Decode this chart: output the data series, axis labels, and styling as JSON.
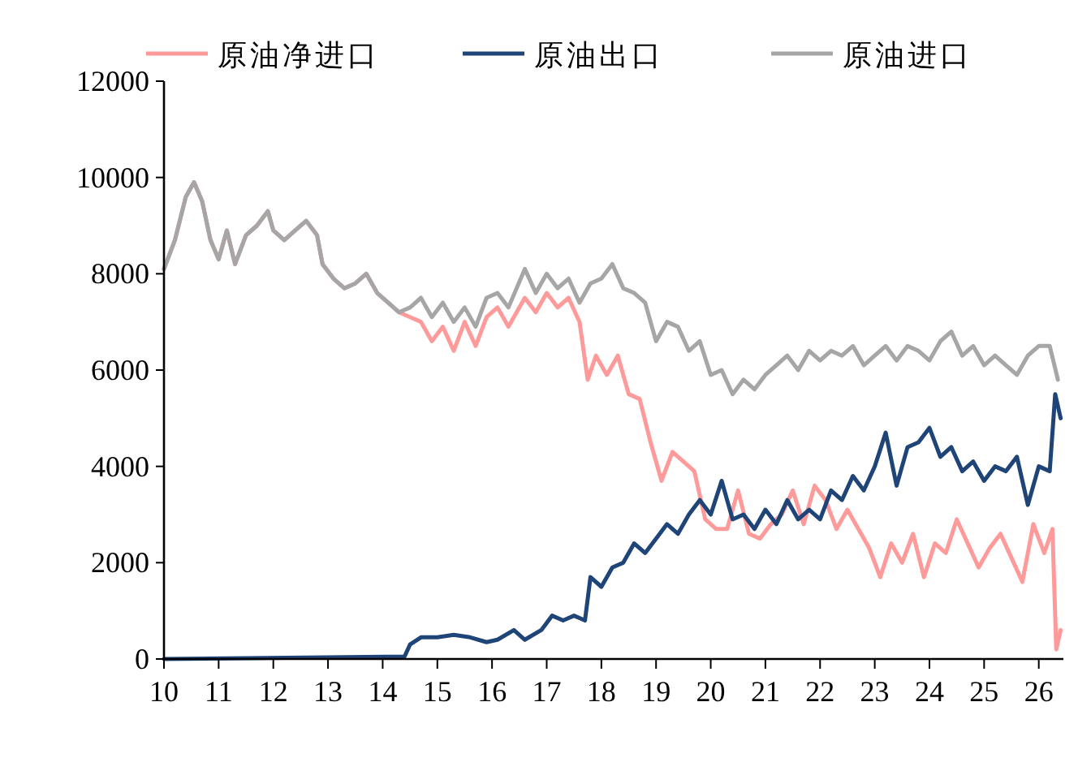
{
  "chart_data": {
    "type": "line",
    "xlim": [
      10,
      26.45
    ],
    "ylim": [
      0,
      12000
    ],
    "xticks": [
      10,
      11,
      12,
      13,
      14,
      15,
      16,
      17,
      18,
      19,
      20,
      21,
      22,
      23,
      24,
      25,
      26
    ],
    "yticks": [
      0,
      2000,
      4000,
      6000,
      8000,
      10000,
      12000
    ],
    "grid": false,
    "legend": "top",
    "series": [
      {
        "name": "原油净进口",
        "color": "#ff9a9a",
        "x": [
          10.0,
          10.2,
          10.4,
          10.55,
          10.7,
          10.85,
          11.0,
          11.15,
          11.3,
          11.5,
          11.7,
          11.9,
          12.0,
          12.2,
          12.4,
          12.6,
          12.8,
          12.9,
          13.1,
          13.3,
          13.5,
          13.7,
          13.9,
          14.1,
          14.3,
          14.5,
          14.7,
          14.9,
          15.1,
          15.3,
          15.5,
          15.7,
          15.9,
          16.1,
          16.3,
          16.6,
          16.8,
          17.0,
          17.2,
          17.4,
          17.6,
          17.75,
          17.9,
          18.1,
          18.3,
          18.5,
          18.7,
          18.9,
          19.1,
          19.3,
          19.5,
          19.7,
          19.9,
          20.1,
          20.3,
          20.5,
          20.7,
          20.9,
          21.1,
          21.3,
          21.5,
          21.7,
          21.9,
          22.1,
          22.3,
          22.5,
          22.7,
          22.9,
          23.1,
          23.3,
          23.5,
          23.7,
          23.9,
          24.1,
          24.3,
          24.5,
          24.7,
          24.9,
          25.1,
          25.3,
          25.5,
          25.7,
          25.9,
          26.1,
          26.25,
          26.32,
          26.4
        ],
        "values": [
          8100,
          8700,
          9600,
          9900,
          9500,
          8700,
          8300,
          8900,
          8200,
          8800,
          9000,
          9300,
          8900,
          8700,
          8900,
          9100,
          8800,
          8200,
          7900,
          7700,
          7800,
          8000,
          7600,
          7400,
          7200,
          7100,
          7000,
          6600,
          6900,
          6400,
          7000,
          6500,
          7100,
          7300,
          6900,
          7500,
          7200,
          7600,
          7300,
          7500,
          7000,
          5800,
          6300,
          5900,
          6300,
          5500,
          5400,
          4500,
          3700,
          4300,
          4100,
          3900,
          2900,
          2700,
          2700,
          3500,
          2600,
          2500,
          2800,
          3000,
          3500,
          2800,
          3600,
          3300,
          2700,
          3100,
          2700,
          2300,
          1700,
          2400,
          2000,
          2600,
          1700,
          2400,
          2200,
          2900,
          2400,
          1900,
          2300,
          2600,
          2100,
          1600,
          2800,
          2200,
          2700,
          200,
          600
        ]
      },
      {
        "name": "原油出口",
        "color": "#1f4578",
        "x": [
          10.0,
          14.4,
          14.5,
          14.7,
          15.0,
          15.3,
          15.6,
          15.9,
          16.1,
          16.4,
          16.6,
          16.9,
          17.1,
          17.3,
          17.5,
          17.7,
          17.8,
          18.0,
          18.2,
          18.4,
          18.6,
          18.8,
          19.0,
          19.2,
          19.4,
          19.6,
          19.8,
          20.0,
          20.2,
          20.4,
          20.6,
          20.8,
          21.0,
          21.2,
          21.4,
          21.6,
          21.8,
          22.0,
          22.2,
          22.4,
          22.6,
          22.8,
          23.0,
          23.2,
          23.4,
          23.6,
          23.8,
          24.0,
          24.2,
          24.4,
          24.6,
          24.8,
          25.0,
          25.2,
          25.4,
          25.6,
          25.8,
          26.0,
          26.2,
          26.3,
          26.4
        ],
        "values": [
          0,
          50,
          300,
          450,
          450,
          500,
          450,
          350,
          400,
          600,
          400,
          600,
          900,
          800,
          900,
          800,
          1700,
          1500,
          1900,
          2000,
          2400,
          2200,
          2500,
          2800,
          2600,
          3000,
          3300,
          3000,
          3700,
          2900,
          3000,
          2700,
          3100,
          2800,
          3300,
          2900,
          3100,
          2900,
          3500,
          3300,
          3800,
          3500,
          4000,
          4700,
          3600,
          4400,
          4500,
          4800,
          4200,
          4400,
          3900,
          4100,
          3700,
          4000,
          3900,
          4200,
          3200,
          4000,
          3900,
          5500,
          5000
        ]
      },
      {
        "name": "原油进口",
        "color": "#a6a6a6",
        "x": [
          10.0,
          10.2,
          10.4,
          10.55,
          10.7,
          10.85,
          11.0,
          11.15,
          11.3,
          11.5,
          11.7,
          11.9,
          12.0,
          12.2,
          12.4,
          12.6,
          12.8,
          12.9,
          13.1,
          13.3,
          13.5,
          13.7,
          13.9,
          14.1,
          14.3,
          14.5,
          14.7,
          14.9,
          15.1,
          15.3,
          15.5,
          15.7,
          15.9,
          16.1,
          16.3,
          16.6,
          16.8,
          17.0,
          17.2,
          17.4,
          17.6,
          17.8,
          18.0,
          18.2,
          18.4,
          18.6,
          18.8,
          19.0,
          19.2,
          19.4,
          19.6,
          19.8,
          20.0,
          20.2,
          20.4,
          20.6,
          20.8,
          21.0,
          21.2,
          21.4,
          21.6,
          21.8,
          22.0,
          22.2,
          22.4,
          22.6,
          22.8,
          23.0,
          23.2,
          23.4,
          23.6,
          23.8,
          24.0,
          24.2,
          24.4,
          24.6,
          24.8,
          25.0,
          25.2,
          25.4,
          25.6,
          25.8,
          26.0,
          26.2,
          26.35
        ],
        "values": [
          8100,
          8700,
          9600,
          9900,
          9500,
          8700,
          8300,
          8900,
          8200,
          8800,
          9000,
          9300,
          8900,
          8700,
          8900,
          9100,
          8800,
          8200,
          7900,
          7700,
          7800,
          8000,
          7600,
          7400,
          7200,
          7300,
          7500,
          7100,
          7400,
          7000,
          7300,
          6900,
          7500,
          7600,
          7300,
          8100,
          7600,
          8000,
          7700,
          7900,
          7400,
          7800,
          7900,
          8200,
          7700,
          7600,
          7400,
          6600,
          7000,
          6900,
          6400,
          6600,
          5900,
          6000,
          5500,
          5800,
          5600,
          5900,
          6100,
          6300,
          6000,
          6400,
          6200,
          6400,
          6300,
          6500,
          6100,
          6300,
          6500,
          6200,
          6500,
          6400,
          6200,
          6600,
          6800,
          6300,
          6500,
          6100,
          6300,
          6100,
          5900,
          6300,
          6500,
          6500,
          5800
        ]
      }
    ]
  }
}
